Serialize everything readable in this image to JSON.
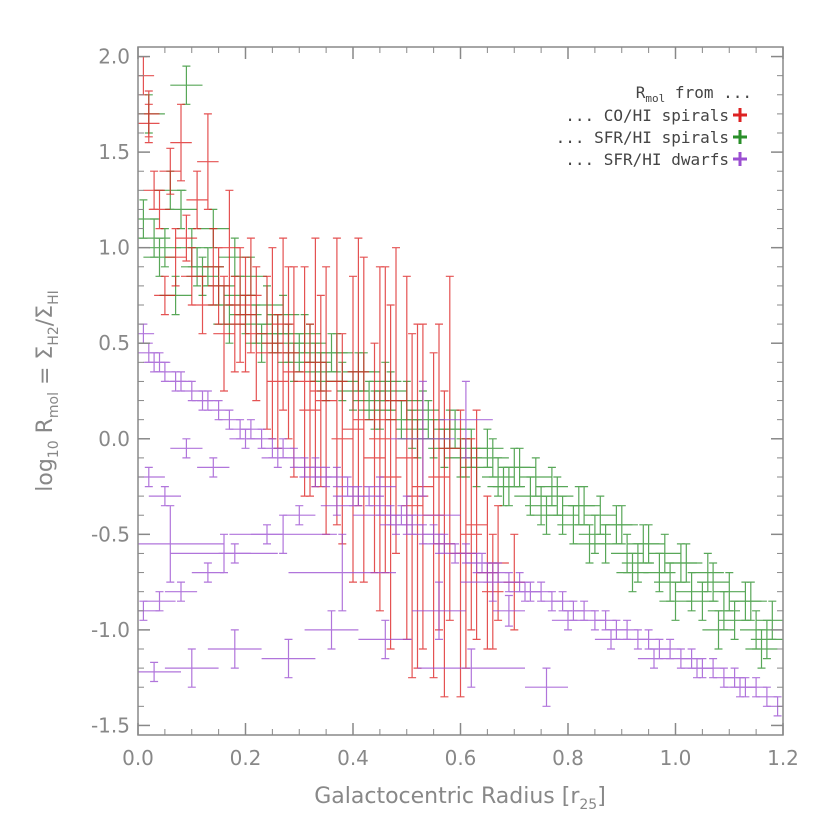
{
  "chart_data": {
    "type": "scatter",
    "title": "",
    "xlabel": {
      "base": "Galactocentric Radius [r",
      "sub": "25",
      "close": "]"
    },
    "ylabel": {
      "pre": "log",
      "pre_sub": "10",
      "r": " R",
      "r_sub": "mol",
      "eq": " = Σ",
      "num_sub": "H2",
      "slash": "/Σ",
      "den_sub": "HI"
    },
    "xlim": [
      0.0,
      1.2
    ],
    "ylim": [
      -1.55,
      2.05
    ],
    "xticks": [
      "0.0",
      "0.2",
      "0.4",
      "0.6",
      "0.8",
      "1.0",
      "1.2"
    ],
    "yticks": [
      "2.0",
      "1.5",
      "1.0",
      "0.5",
      "0.0",
      "-0.5",
      "-1.0",
      "-1.5"
    ],
    "grid": false,
    "legend": {
      "placement": "top-right",
      "header": {
        "r": "R",
        "sub": "mol",
        "rest": " from ..."
      },
      "entries": [
        {
          "label": "... CO/HI spirals",
          "color": "#dd2222"
        },
        {
          "label": "... SFR/HI spirals",
          "color": "#2a8f2a"
        },
        {
          "label": "... SFR/HI dwarfs",
          "color": "#9b4fd1"
        }
      ]
    },
    "series": [
      {
        "name": "CO/HI spirals",
        "color": "#dd2222",
        "x": [
          0.01,
          0.02,
          0.03,
          0.05,
          0.07,
          0.08,
          0.1,
          0.12,
          0.13,
          0.15,
          0.17,
          0.18,
          0.2,
          0.22,
          0.24,
          0.25,
          0.27,
          0.29,
          0.31,
          0.33,
          0.35,
          0.37,
          0.4,
          0.42,
          0.45,
          0.47,
          0.5,
          0.52,
          0.55,
          0.57,
          0.6,
          0.62,
          0.65,
          0.67,
          0.7,
          0.04,
          0.09,
          0.14,
          0.19,
          0.26,
          0.32,
          0.38,
          0.44,
          0.48,
          0.53,
          0.58,
          0.63,
          0.02,
          0.06,
          0.11,
          0.16,
          0.21,
          0.28,
          0.34,
          0.41,
          0.46,
          0.51,
          0.56,
          0.61,
          0.66
        ],
        "y": [
          1.9,
          1.7,
          1.3,
          0.75,
          0.95,
          1.55,
          0.85,
          0.7,
          1.45,
          0.8,
          1.0,
          0.6,
          0.65,
          0.55,
          0.45,
          0.5,
          0.6,
          0.35,
          0.3,
          0.4,
          0.2,
          0.3,
          0.05,
          0.1,
          0.0,
          -0.2,
          -0.1,
          -0.3,
          -0.4,
          -0.55,
          -0.6,
          -0.5,
          -0.7,
          -0.65,
          -0.75,
          1.2,
          1.05,
          0.9,
          0.7,
          0.3,
          0.15,
          0.0,
          -0.1,
          0.2,
          -0.25,
          -0.05,
          -0.45,
          1.65,
          1.4,
          1.25,
          0.55,
          0.75,
          0.45,
          0.25,
          0.35,
          0.1,
          -0.35,
          -0.2,
          -0.6,
          -0.8
        ],
        "xerr": [
          0.02,
          0.02,
          0.02,
          0.02,
          0.02,
          0.02,
          0.02,
          0.02,
          0.02,
          0.02,
          0.02,
          0.02,
          0.02,
          0.02,
          0.02,
          0.02,
          0.02,
          0.02,
          0.02,
          0.02,
          0.02,
          0.02,
          0.02,
          0.02,
          0.02,
          0.02,
          0.02,
          0.02,
          0.02,
          0.02,
          0.02,
          0.02,
          0.02,
          0.02,
          0.02,
          0.02,
          0.02,
          0.02,
          0.02,
          0.02,
          0.02,
          0.02,
          0.02,
          0.02,
          0.02,
          0.02,
          0.02,
          0.02,
          0.02,
          0.02,
          0.02,
          0.02,
          0.02,
          0.02,
          0.02,
          0.02,
          0.02,
          0.02,
          0.02,
          0.02
        ],
        "yerr": [
          0.1,
          0.12,
          0.1,
          0.1,
          0.15,
          0.2,
          0.15,
          0.15,
          0.25,
          0.2,
          0.3,
          0.25,
          0.3,
          0.35,
          0.4,
          0.5,
          0.45,
          0.55,
          0.6,
          0.65,
          0.7,
          0.75,
          0.8,
          0.85,
          0.9,
          0.9,
          0.95,
          0.9,
          0.85,
          0.8,
          0.75,
          0.5,
          0.4,
          0.3,
          0.25,
          0.1,
          0.12,
          0.2,
          0.3,
          0.35,
          0.45,
          0.55,
          0.6,
          0.8,
          0.85,
          0.9,
          0.6,
          0.1,
          0.12,
          0.15,
          0.3,
          0.3,
          0.45,
          0.5,
          0.7,
          0.8,
          0.9,
          0.8,
          0.6,
          0.3
        ]
      },
      {
        "name": "SFR/HI spirals",
        "color": "#2a8f2a",
        "x": [
          0.01,
          0.02,
          0.03,
          0.04,
          0.06,
          0.07,
          0.08,
          0.09,
          0.1,
          0.11,
          0.12,
          0.14,
          0.15,
          0.16,
          0.18,
          0.19,
          0.21,
          0.22,
          0.24,
          0.25,
          0.27,
          0.28,
          0.3,
          0.31,
          0.33,
          0.34,
          0.36,
          0.38,
          0.4,
          0.41,
          0.43,
          0.45,
          0.47,
          0.49,
          0.51,
          0.53,
          0.55,
          0.57,
          0.59,
          0.61,
          0.63,
          0.65,
          0.67,
          0.69,
          0.71,
          0.73,
          0.75,
          0.77,
          0.79,
          0.81,
          0.83,
          0.85,
          0.87,
          0.89,
          0.91,
          0.93,
          0.95,
          0.97,
          0.99,
          1.01,
          1.03,
          1.05,
          1.07,
          1.09,
          1.11,
          1.13,
          1.15,
          1.17,
          0.05,
          0.13,
          0.2,
          0.26,
          0.32,
          0.37,
          0.42,
          0.46,
          0.5,
          0.54,
          0.58,
          0.62,
          0.66,
          0.7,
          0.74,
          0.78,
          0.82,
          0.86,
          0.9,
          0.94,
          0.98,
          1.02,
          1.06,
          1.1,
          1.14,
          1.18,
          0.17,
          0.23,
          0.29,
          0.35,
          0.44,
          0.52,
          0.6,
          0.68,
          0.76,
          0.84,
          0.92,
          1.0,
          1.08,
          1.16
        ],
        "y": [
          1.15,
          1.7,
          1.05,
          0.95,
          1.3,
          0.75,
          1.2,
          1.85,
          1.0,
          0.9,
          0.85,
          1.1,
          0.8,
          0.7,
          0.95,
          0.75,
          0.85,
          0.6,
          0.7,
          0.55,
          0.65,
          0.5,
          0.45,
          0.55,
          0.4,
          0.35,
          0.45,
          0.3,
          0.25,
          0.35,
          0.2,
          0.15,
          0.25,
          0.1,
          0.05,
          0.15,
          0.0,
          -0.05,
          0.05,
          -0.1,
          -0.15,
          -0.05,
          -0.2,
          -0.25,
          -0.15,
          -0.3,
          -0.35,
          -0.25,
          -0.4,
          -0.45,
          -0.35,
          -0.5,
          -0.55,
          -0.45,
          -0.6,
          -0.65,
          -0.55,
          -0.7,
          -0.75,
          -0.65,
          -0.8,
          -0.85,
          -0.75,
          -0.9,
          -0.95,
          -0.85,
          -1.0,
          -1.05,
          1.0,
          0.9,
          0.65,
          0.55,
          0.5,
          0.45,
          0.35,
          0.3,
          0.2,
          0.1,
          0.05,
          -0.05,
          -0.1,
          -0.15,
          -0.2,
          -0.3,
          -0.35,
          -0.4,
          -0.45,
          -0.55,
          -0.6,
          -0.65,
          -0.7,
          -0.8,
          -0.85,
          -0.95,
          0.6,
          0.5,
          0.4,
          0.3,
          0.15,
          0.0,
          -0.1,
          -0.25,
          -0.4,
          -0.55,
          -0.7,
          -0.85,
          -1.0,
          -1.1
        ],
        "xerr": [
          0.03,
          0.03,
          0.03,
          0.03,
          0.03,
          0.03,
          0.03,
          0.03,
          0.03,
          0.03,
          0.03,
          0.03,
          0.03,
          0.03,
          0.03,
          0.03,
          0.03,
          0.03,
          0.03,
          0.03,
          0.03,
          0.03,
          0.03,
          0.03,
          0.03,
          0.03,
          0.03,
          0.03,
          0.03,
          0.03,
          0.03,
          0.03,
          0.03,
          0.03,
          0.03,
          0.03,
          0.03,
          0.03,
          0.03,
          0.03,
          0.03,
          0.03,
          0.03,
          0.03,
          0.03,
          0.03,
          0.03,
          0.03,
          0.03,
          0.03,
          0.03,
          0.03,
          0.03,
          0.03,
          0.03,
          0.03,
          0.03,
          0.03,
          0.03,
          0.03,
          0.03,
          0.03,
          0.03,
          0.03,
          0.03,
          0.03,
          0.03,
          0.03,
          0.03,
          0.03,
          0.03,
          0.03,
          0.03,
          0.03,
          0.03,
          0.03,
          0.03,
          0.03,
          0.03,
          0.03,
          0.03,
          0.03,
          0.03,
          0.03,
          0.03,
          0.03,
          0.03,
          0.03,
          0.03,
          0.03,
          0.03,
          0.03,
          0.03,
          0.03,
          0.03,
          0.03,
          0.03,
          0.03,
          0.03,
          0.03,
          0.03,
          0.03,
          0.03,
          0.03,
          0.03,
          0.03,
          0.03,
          0.03
        ],
        "yerr": [
          0.1,
          0.1,
          0.1,
          0.1,
          0.1,
          0.1,
          0.1,
          0.1,
          0.1,
          0.1,
          0.1,
          0.1,
          0.1,
          0.1,
          0.1,
          0.1,
          0.1,
          0.1,
          0.1,
          0.1,
          0.1,
          0.1,
          0.1,
          0.1,
          0.1,
          0.1,
          0.1,
          0.1,
          0.1,
          0.1,
          0.1,
          0.1,
          0.1,
          0.1,
          0.1,
          0.1,
          0.1,
          0.1,
          0.1,
          0.1,
          0.1,
          0.1,
          0.1,
          0.1,
          0.1,
          0.1,
          0.1,
          0.1,
          0.1,
          0.1,
          0.1,
          0.1,
          0.1,
          0.1,
          0.1,
          0.1,
          0.1,
          0.1,
          0.1,
          0.1,
          0.1,
          0.1,
          0.1,
          0.1,
          0.1,
          0.1,
          0.1,
          0.1,
          0.1,
          0.1,
          0.1,
          0.1,
          0.1,
          0.1,
          0.1,
          0.1,
          0.1,
          0.1,
          0.1,
          0.1,
          0.1,
          0.1,
          0.1,
          0.1,
          0.1,
          0.1,
          0.1,
          0.1,
          0.1,
          0.1,
          0.1,
          0.1,
          0.1,
          0.1,
          0.1,
          0.1,
          0.1,
          0.1,
          0.1,
          0.1,
          0.1,
          0.1,
          0.1,
          0.1,
          0.1,
          0.1,
          0.1,
          0.1
        ]
      },
      {
        "name": "SFR/HI dwarfs",
        "color": "#9b4fd1",
        "x": [
          0.01,
          0.02,
          0.03,
          0.04,
          0.05,
          0.07,
          0.08,
          0.1,
          0.12,
          0.13,
          0.15,
          0.17,
          0.19,
          0.21,
          0.23,
          0.25,
          0.27,
          0.29,
          0.31,
          0.33,
          0.35,
          0.37,
          0.39,
          0.41,
          0.43,
          0.45,
          0.47,
          0.49,
          0.51,
          0.53,
          0.55,
          0.57,
          0.59,
          0.61,
          0.63,
          0.65,
          0.67,
          0.69,
          0.71,
          0.73,
          0.75,
          0.77,
          0.79,
          0.81,
          0.83,
          0.85,
          0.87,
          0.89,
          0.91,
          0.93,
          0.95,
          0.97,
          0.99,
          1.01,
          1.03,
          1.05,
          1.07,
          1.09,
          1.11,
          1.13,
          1.15,
          1.17,
          1.19,
          0.02,
          0.05,
          0.09,
          0.14,
          0.2,
          0.26,
          0.33,
          0.4,
          0.48,
          0.56,
          0.64,
          0.72,
          0.8,
          0.88,
          0.96,
          1.04,
          1.12,
          0.01,
          0.04,
          0.08,
          0.13,
          0.18,
          0.24,
          0.3,
          0.37,
          0.45,
          0.53,
          0.61,
          0.69,
          0.03,
          0.1,
          0.18,
          0.28,
          0.36,
          0.46,
          0.56,
          0.66,
          0.76,
          0.06,
          0.16,
          0.27,
          0.38,
          0.5,
          0.62
        ],
        "y": [
          0.55,
          0.45,
          0.4,
          0.4,
          0.35,
          0.3,
          0.3,
          0.25,
          0.2,
          0.2,
          0.15,
          0.1,
          0.05,
          0.05,
          0.0,
          -0.05,
          -0.05,
          -0.1,
          -0.15,
          -0.15,
          -0.2,
          -0.2,
          -0.25,
          -0.3,
          -0.3,
          -0.35,
          -0.4,
          -0.4,
          -0.45,
          -0.5,
          -0.5,
          -0.55,
          -0.6,
          -0.6,
          -0.65,
          -0.7,
          -0.7,
          -0.75,
          -0.75,
          -0.8,
          -0.8,
          -0.85,
          -0.85,
          -0.9,
          -0.9,
          -0.95,
          -0.95,
          -1.0,
          -1.0,
          -1.05,
          -1.05,
          -1.1,
          -1.1,
          -1.15,
          -1.15,
          -1.2,
          -1.2,
          -1.25,
          -1.25,
          -1.3,
          -1.3,
          -1.35,
          -1.4,
          -0.2,
          -0.3,
          -0.05,
          -0.15,
          0.0,
          -0.1,
          -0.2,
          -0.3,
          -0.45,
          -0.55,
          -0.65,
          -0.8,
          -0.95,
          -1.05,
          -1.15,
          -1.2,
          -1.3,
          -0.9,
          -0.85,
          -0.8,
          -0.7,
          -0.6,
          -0.5,
          -0.4,
          -0.35,
          -0.25,
          0.0,
          0.1,
          -0.9,
          -1.22,
          -1.2,
          -1.1,
          -1.15,
          -1.0,
          -1.05,
          -0.9,
          -0.75,
          -1.3,
          -0.55,
          -0.6,
          -0.5,
          -0.7,
          -0.4,
          -1.2
        ],
        "xerr": [
          0.02,
          0.02,
          0.02,
          0.02,
          0.02,
          0.02,
          0.02,
          0.02,
          0.02,
          0.02,
          0.02,
          0.02,
          0.02,
          0.02,
          0.02,
          0.02,
          0.02,
          0.02,
          0.02,
          0.02,
          0.02,
          0.02,
          0.02,
          0.02,
          0.02,
          0.02,
          0.02,
          0.02,
          0.02,
          0.02,
          0.02,
          0.02,
          0.02,
          0.02,
          0.02,
          0.02,
          0.02,
          0.02,
          0.02,
          0.02,
          0.02,
          0.02,
          0.02,
          0.02,
          0.02,
          0.02,
          0.02,
          0.02,
          0.02,
          0.02,
          0.02,
          0.02,
          0.02,
          0.02,
          0.02,
          0.02,
          0.02,
          0.02,
          0.02,
          0.02,
          0.02,
          0.02,
          0.02,
          0.03,
          0.03,
          0.03,
          0.03,
          0.03,
          0.03,
          0.03,
          0.03,
          0.03,
          0.03,
          0.03,
          0.03,
          0.03,
          0.03,
          0.03,
          0.03,
          0.03,
          0.03,
          0.03,
          0.03,
          0.03,
          0.03,
          0.03,
          0.03,
          0.03,
          0.03,
          0.06,
          0.05,
          0.03,
          0.05,
          0.05,
          0.05,
          0.05,
          0.05,
          0.05,
          0.05,
          0.06,
          0.04,
          0.1,
          0.1,
          0.1,
          0.1,
          0.1,
          0.1
        ],
        "yerr": [
          0.05,
          0.05,
          0.05,
          0.05,
          0.05,
          0.05,
          0.05,
          0.05,
          0.05,
          0.05,
          0.05,
          0.05,
          0.05,
          0.05,
          0.05,
          0.05,
          0.05,
          0.05,
          0.05,
          0.05,
          0.05,
          0.05,
          0.05,
          0.05,
          0.05,
          0.05,
          0.05,
          0.05,
          0.05,
          0.05,
          0.05,
          0.05,
          0.05,
          0.05,
          0.05,
          0.05,
          0.05,
          0.05,
          0.05,
          0.05,
          0.05,
          0.05,
          0.05,
          0.05,
          0.05,
          0.05,
          0.05,
          0.05,
          0.05,
          0.05,
          0.05,
          0.05,
          0.05,
          0.05,
          0.05,
          0.05,
          0.05,
          0.05,
          0.05,
          0.05,
          0.05,
          0.05,
          0.05,
          0.05,
          0.05,
          0.05,
          0.05,
          0.05,
          0.05,
          0.05,
          0.05,
          0.05,
          0.05,
          0.05,
          0.05,
          0.05,
          0.05,
          0.05,
          0.05,
          0.05,
          0.05,
          0.05,
          0.05,
          0.05,
          0.05,
          0.05,
          0.05,
          0.05,
          0.05,
          0.3,
          0.2,
          0.08,
          0.05,
          0.1,
          0.1,
          0.1,
          0.1,
          0.1,
          0.15,
          0.1,
          0.1,
          0.2,
          0.1,
          0.1,
          0.2,
          0.1,
          0.1
        ]
      }
    ]
  }
}
